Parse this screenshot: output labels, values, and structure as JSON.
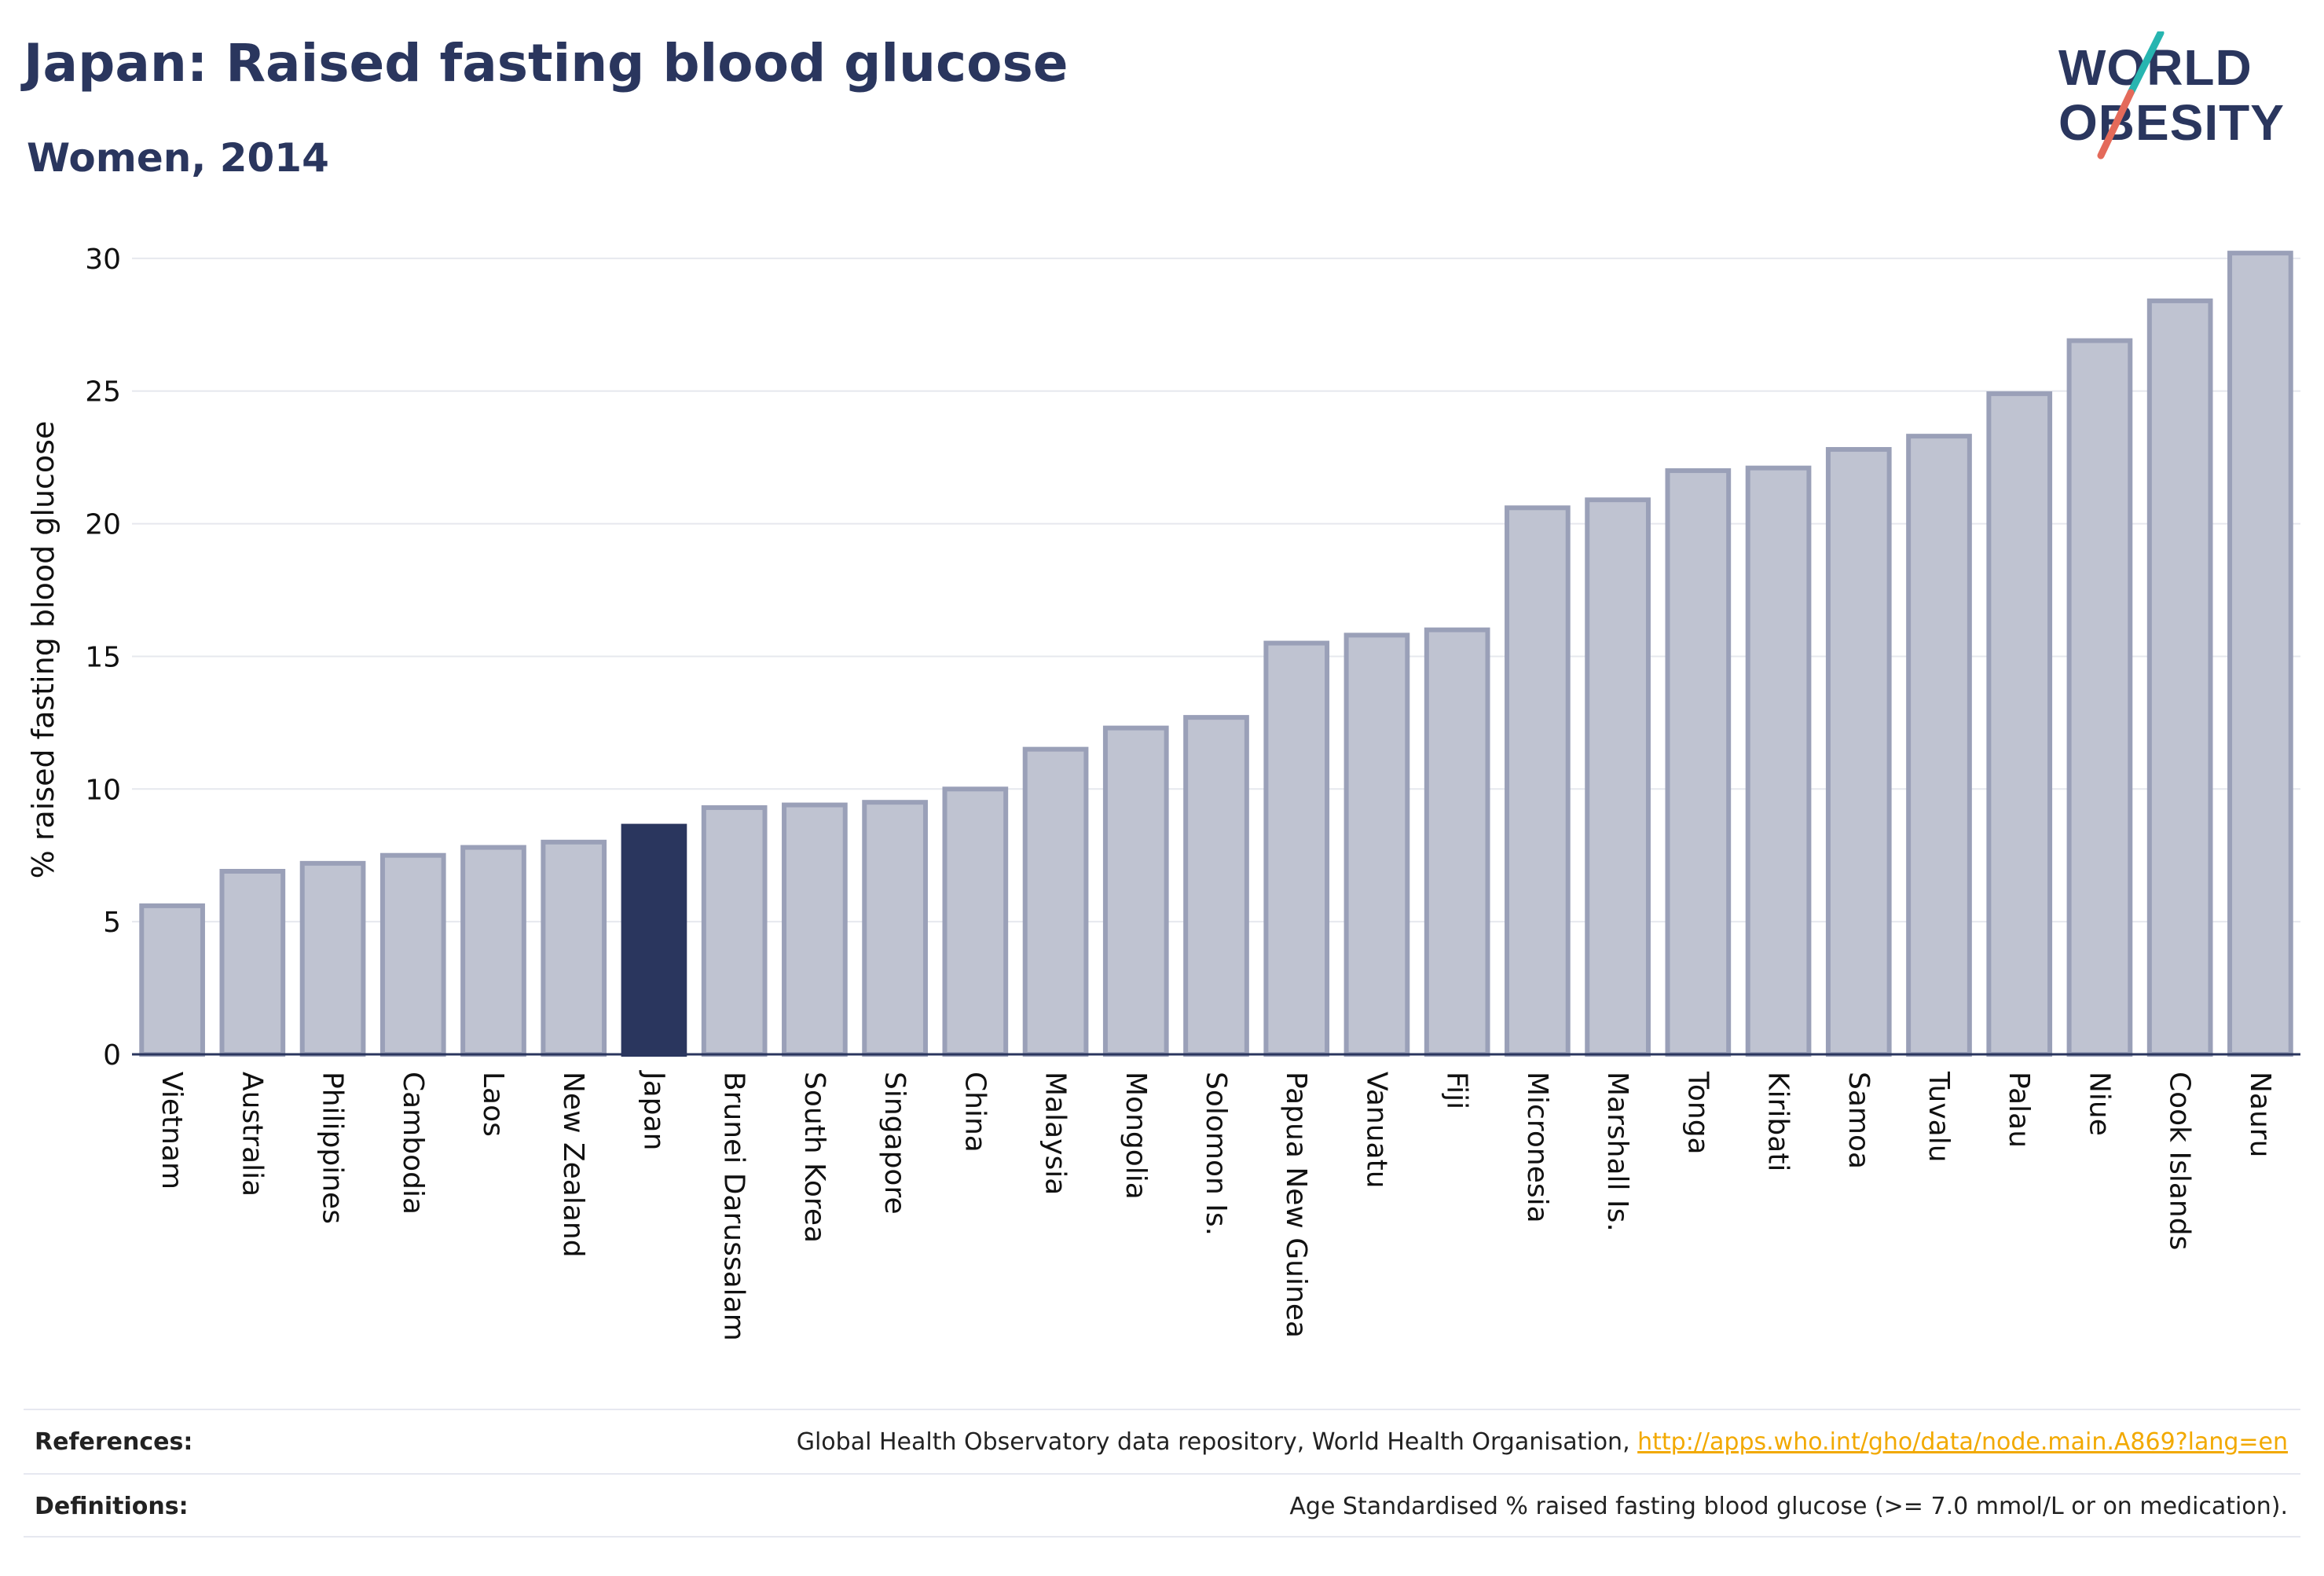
{
  "header": {
    "title": "Japan: Raised fasting blood glucose",
    "subtitle": "Women, 2014"
  },
  "logo": {
    "line1": "WORLD",
    "line2": "OBESITY",
    "colors": {
      "text": "#2a365e",
      "slash_top": "#27b5b0",
      "slash_bottom": "#e46a5a"
    }
  },
  "footer": {
    "references_label": "References:",
    "references_text": "Global Health Observatory data repository, World Health Organisation, ",
    "references_link": "http://apps.who.int/gho/data/node.main.A869?lang=en",
    "definitions_label": "Definitions:",
    "definitions_text": "Age Standardised % raised fasting blood glucose (>= 7.0 mmol/L or on medication)."
  },
  "chart_data": {
    "type": "bar",
    "ylabel": "% raised fasting blood glucose",
    "xlabel": "",
    "ylim": [
      0,
      30.5
    ],
    "yticks": [
      0,
      5,
      10,
      15,
      20,
      25,
      30
    ],
    "grid": true,
    "highlight": "Japan",
    "colors": {
      "bar": "#bfc3d1",
      "bar_border": "#9aa0b8",
      "highlight": "#2a365e",
      "grid": "#e6e8ee",
      "axis": "#2a365e"
    },
    "categories": [
      "Vietnam",
      "Australia",
      "Philippines",
      "Cambodia",
      "Laos",
      "New Zealand",
      "Japan",
      "Brunei Darussalam",
      "South Korea",
      "Singapore",
      "China",
      "Malaysia",
      "Mongolia",
      "Solomon Is.",
      "Papua New Guinea",
      "Vanuatu",
      "Fiji",
      "Micronesia",
      "Marshall Is.",
      "Tonga",
      "Kiribati",
      "Samoa",
      "Tuvalu",
      "Palau",
      "Niue",
      "Cook Islands",
      "Nauru"
    ],
    "values": [
      5.6,
      6.9,
      7.2,
      7.5,
      7.8,
      8.0,
      8.6,
      9.3,
      9.4,
      9.5,
      10.0,
      11.5,
      12.3,
      12.7,
      15.5,
      15.8,
      16.0,
      20.6,
      20.9,
      22.0,
      22.1,
      22.8,
      23.3,
      24.9,
      26.9,
      28.4,
      30.2
    ]
  }
}
